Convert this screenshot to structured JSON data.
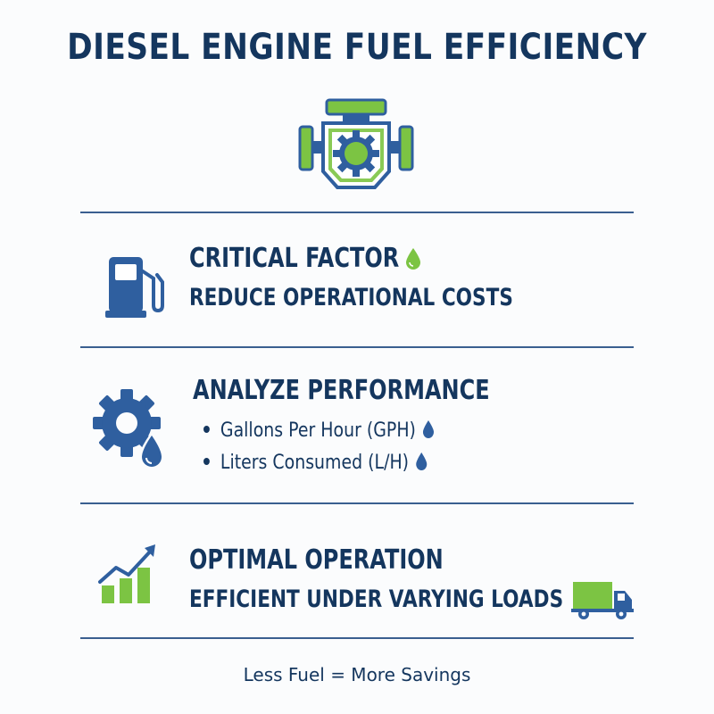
{
  "title": "DIESEL ENGINE FUEL EFFICIENCY",
  "icons": {
    "engine": "engine-icon",
    "fuel_pump": "fuel-pump-icon",
    "gear_drop": "gear-with-fuel-drop-icon",
    "growth_chart": "growth-bar-chart-icon",
    "truck": "delivery-truck-icon",
    "drop": "fuel-drop-icon"
  },
  "colors": {
    "navy": "#14365e",
    "blue": "#2f5f9f",
    "green": "#7cc443",
    "divider": "#3a5f90"
  },
  "sections": [
    {
      "heading": "CRITICAL FACTOR",
      "subheading": "REDUCE OPERATIONAL COSTS"
    },
    {
      "heading": "ANALYZE PERFORMANCE",
      "bullets": [
        "Gallons Per Hour (GPH)",
        "Liters Consumed (L/H)"
      ]
    },
    {
      "heading": "OPTIMAL OPERATION",
      "subheading": "EFFICIENT UNDER VARYING LOADS"
    }
  ],
  "footer": "Less Fuel = More Savings"
}
